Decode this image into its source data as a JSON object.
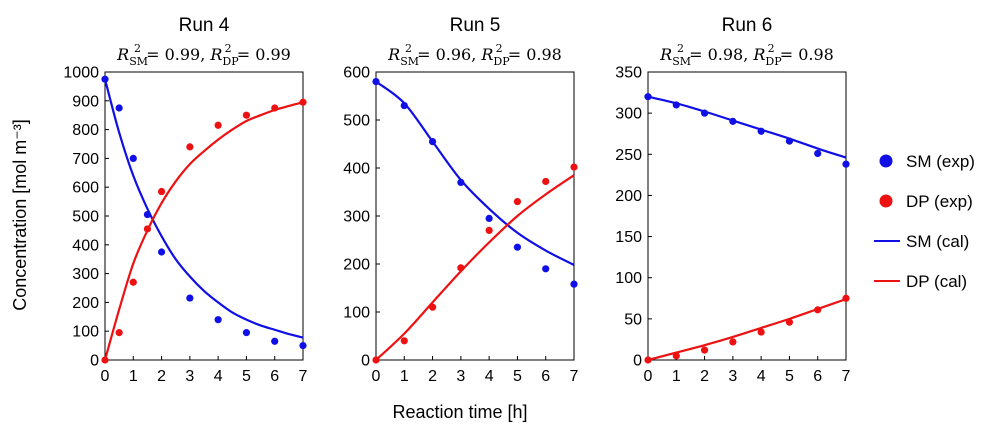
{
  "colors": {
    "sm": "#1010e6",
    "dp": "#ee1111",
    "axis": "#000000"
  },
  "axes": {
    "xlabel": "Reaction time [h]",
    "ylabel": "Concentration [mol m⁻³]"
  },
  "legend": {
    "placement": "right",
    "items": [
      {
        "label": "SM (exp)",
        "kind": "marker",
        "color": "#1010e6"
      },
      {
        "label": "DP (exp)",
        "kind": "marker",
        "color": "#ee1111"
      },
      {
        "label": "SM (cal)",
        "kind": "line",
        "color": "#1010e6"
      },
      {
        "label": "DP (cal)",
        "kind": "line",
        "color": "#ee1111"
      }
    ]
  },
  "chart_data": [
    {
      "type": "scatter",
      "title": "Run 4",
      "fit": {
        "sm": "0.99",
        "dp": "0.99"
      },
      "xlim": [
        0,
        7
      ],
      "xticks": [
        0,
        1,
        2,
        3,
        4,
        5,
        6,
        7
      ],
      "ylim": [
        0,
        1000
      ],
      "yticks": [
        0,
        100,
        200,
        300,
        400,
        500,
        600,
        700,
        800,
        900,
        1000
      ],
      "series": [
        {
          "name": "SM (exp)",
          "x": [
            0,
            0.5,
            1,
            1.5,
            2,
            3,
            4,
            5,
            6,
            7
          ],
          "y": [
            975,
            875,
            700,
            505,
            375,
            215,
            140,
            95,
            65,
            50
          ]
        },
        {
          "name": "DP (exp)",
          "x": [
            0,
            0.5,
            1,
            1.5,
            2,
            3,
            4,
            5,
            6,
            7
          ],
          "y": [
            0,
            95,
            270,
            455,
            585,
            740,
            815,
            850,
            875,
            895
          ]
        },
        {
          "name": "SM (cal)",
          "x": [
            0,
            0.5,
            1,
            1.5,
            2,
            2.5,
            3,
            3.5,
            4,
            4.5,
            5,
            5.5,
            6,
            6.5,
            7
          ],
          "y": [
            975,
            790,
            640,
            525,
            430,
            350,
            290,
            240,
            200,
            165,
            140,
            120,
            105,
            90,
            78
          ]
        },
        {
          "name": "DP (cal)",
          "x": [
            0,
            0.5,
            1,
            1.5,
            2,
            2.5,
            3,
            3.5,
            4,
            4.5,
            5,
            5.5,
            6,
            6.5,
            7
          ],
          "y": [
            0,
            175,
            335,
            450,
            545,
            620,
            680,
            725,
            765,
            800,
            830,
            850,
            868,
            882,
            895
          ]
        }
      ]
    },
    {
      "type": "scatter",
      "title": "Run 5",
      "fit": {
        "sm": "0.96",
        "dp": "0.98"
      },
      "xlim": [
        0,
        7
      ],
      "xticks": [
        0,
        1,
        2,
        3,
        4,
        5,
        6,
        7
      ],
      "ylim": [
        0,
        600
      ],
      "yticks": [
        0,
        100,
        200,
        300,
        400,
        500,
        600
      ],
      "series": [
        {
          "name": "SM (exp)",
          "x": [
            0,
            1,
            2,
            3,
            4,
            5,
            6,
            7
          ],
          "y": [
            580,
            530,
            455,
            370,
            295,
            235,
            190,
            158
          ]
        },
        {
          "name": "DP (exp)",
          "x": [
            0,
            1,
            2,
            3,
            4,
            5,
            6,
            7
          ],
          "y": [
            0,
            40,
            110,
            192,
            270,
            330,
            372,
            402
          ]
        },
        {
          "name": "SM (cal)",
          "x": [
            0,
            1,
            2,
            3,
            4,
            5,
            6,
            7
          ],
          "y": [
            580,
            535,
            455,
            375,
            315,
            265,
            228,
            198
          ]
        },
        {
          "name": "DP (cal)",
          "x": [
            0,
            1,
            2,
            3,
            4,
            5,
            6,
            7
          ],
          "y": [
            0,
            55,
            120,
            185,
            245,
            300,
            345,
            385
          ]
        }
      ]
    },
    {
      "type": "scatter",
      "title": "Run 6",
      "fit": {
        "sm": "0.98",
        "dp": "0.98"
      },
      "xlim": [
        0,
        7
      ],
      "xticks": [
        0,
        1,
        2,
        3,
        4,
        5,
        6,
        7
      ],
      "ylim": [
        0,
        350
      ],
      "yticks": [
        0,
        50,
        100,
        150,
        200,
        250,
        300,
        350
      ],
      "series": [
        {
          "name": "SM (exp)",
          "x": [
            0,
            1,
            2,
            3,
            4,
            5,
            6,
            7
          ],
          "y": [
            320,
            310,
            300,
            290,
            278,
            266,
            251,
            238
          ]
        },
        {
          "name": "DP (exp)",
          "x": [
            0,
            1,
            2,
            3,
            4,
            5,
            6,
            7
          ],
          "y": [
            0,
            5,
            12,
            22,
            34,
            46,
            61,
            75
          ]
        },
        {
          "name": "SM (cal)",
          "x": [
            0,
            1,
            2,
            3,
            4,
            5,
            6,
            7
          ],
          "y": [
            320,
            312,
            302,
            291,
            280,
            269,
            257,
            246
          ]
        },
        {
          "name": "DP (cal)",
          "x": [
            0,
            1,
            2,
            3,
            4,
            5,
            6,
            7
          ],
          "y": [
            0,
            9,
            18,
            28,
            39,
            50,
            62,
            74
          ]
        }
      ]
    }
  ]
}
